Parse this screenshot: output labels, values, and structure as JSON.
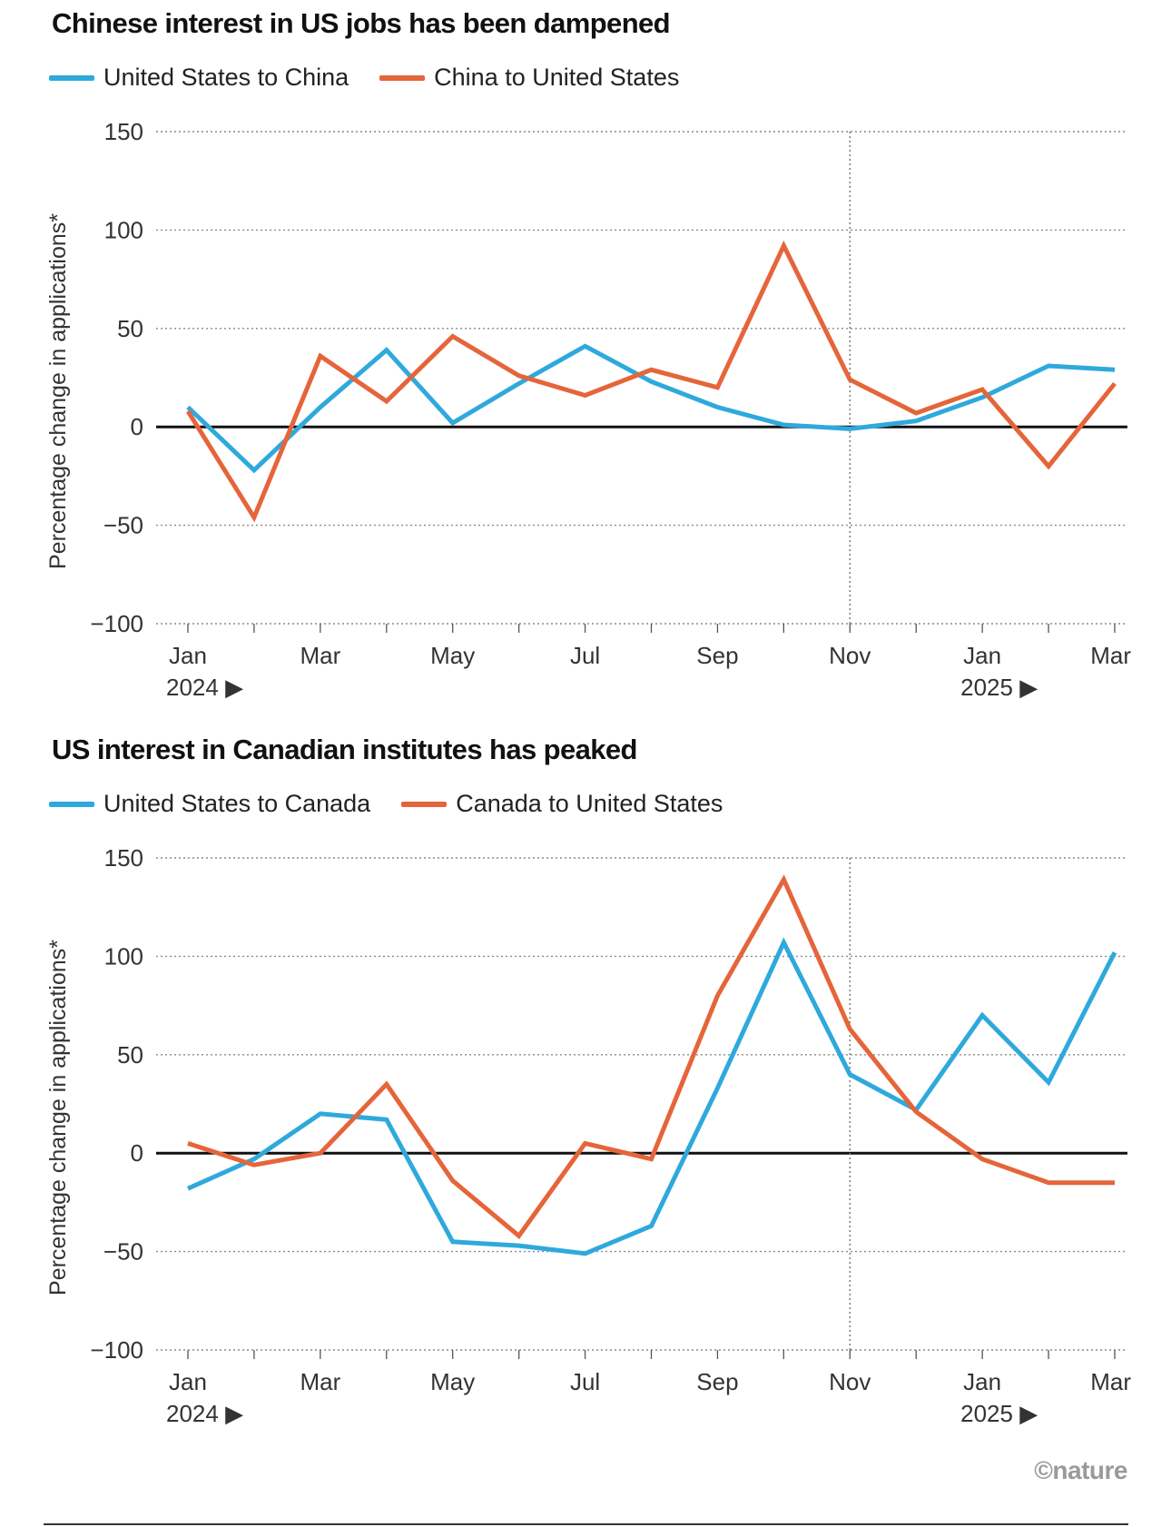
{
  "chart_data": [
    {
      "type": "line",
      "title": "Chinese interest in US jobs has been dampened",
      "ylabel": "Percentage change in applications*",
      "xlabel": "",
      "ylim": [
        -100,
        150
      ],
      "yticks": [
        "150",
        "100",
        "50",
        "0",
        "-50",
        "-100"
      ],
      "ytick_values": [
        150,
        100,
        50,
        0,
        -50,
        -100
      ],
      "months": [
        "Jan 2024",
        "Feb 2024",
        "Mar 2024",
        "Apr 2024",
        "May 2024",
        "Jun 2024",
        "Jul 2024",
        "Aug 2024",
        "Sep 2024",
        "Oct 2024",
        "Nov 2024",
        "Dec 2024",
        "Jan 2025",
        "Feb 2025",
        "Mar 2025"
      ],
      "xtick_labels": [
        "Jan",
        "Mar",
        "May",
        "Jul",
        "Sep",
        "Nov",
        "Jan",
        "Mar"
      ],
      "xtick_index": [
        0,
        2,
        4,
        6,
        8,
        10,
        12,
        14
      ],
      "year_labels": [
        "2024 ▶",
        "2025 ▶"
      ],
      "year_index": [
        0,
        12
      ],
      "reference_month_index": 10,
      "series": [
        {
          "name": "United States to China",
          "color": "#2fa9dc",
          "values": [
            10,
            -22,
            10,
            39,
            2,
            22,
            41,
            23,
            10,
            1,
            -1,
            3,
            15,
            31,
            29
          ]
        },
        {
          "name": "China to United States",
          "color": "#e5653a",
          "values": [
            8,
            -46,
            36,
            13,
            46,
            26,
            16,
            29,
            20,
            92,
            24,
            7,
            19,
            -20,
            22
          ]
        }
      ]
    },
    {
      "type": "line",
      "title": "US interest in Canadian institutes has peaked",
      "ylabel": "Percentage change in applications*",
      "xlabel": "",
      "ylim": [
        -100,
        150
      ],
      "yticks": [
        "150",
        "100",
        "50",
        "0",
        "-50",
        "-100"
      ],
      "ytick_values": [
        150,
        100,
        50,
        0,
        -50,
        -100
      ],
      "months": [
        "Jan 2024",
        "Feb 2024",
        "Mar 2024",
        "Apr 2024",
        "May 2024",
        "Jun 2024",
        "Jul 2024",
        "Aug 2024",
        "Sep 2024",
        "Oct 2024",
        "Nov 2024",
        "Dec 2024",
        "Jan 2025",
        "Feb 2025",
        "Mar 2025"
      ],
      "xtick_labels": [
        "Jan",
        "Mar",
        "May",
        "Jul",
        "Sep",
        "Nov",
        "Jan",
        "Mar"
      ],
      "xtick_index": [
        0,
        2,
        4,
        6,
        8,
        10,
        12,
        14
      ],
      "year_labels": [
        "2024 ▶",
        "2025 ▶"
      ],
      "year_index": [
        0,
        12
      ],
      "reference_month_index": 10,
      "series": [
        {
          "name": "United States to Canada",
          "color": "#2fa9dc",
          "values": [
            -18,
            -3,
            20,
            17,
            -45,
            -47,
            -51,
            -37,
            33,
            107,
            40,
            22,
            70,
            36,
            102
          ]
        },
        {
          "name": "Canada to United States",
          "color": "#e5653a",
          "values": [
            5,
            -6,
            0,
            35,
            -14,
            -42,
            5,
            -3,
            80,
            139,
            63,
            21,
            -3,
            -15,
            -15
          ]
        }
      ]
    }
  ],
  "footer": {
    "logo": "©nature"
  }
}
